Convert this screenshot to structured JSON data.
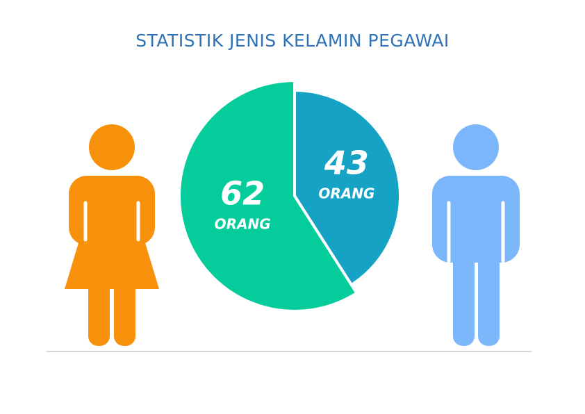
{
  "chart_data": {
    "type": "pie",
    "title": "STATISTIK JENIS KELAMIN PEGAWAI",
    "values": [
      43,
      62
    ],
    "colors": [
      "#16a2c4",
      "#04cc9a"
    ],
    "unit": "ORANG"
  }
}
